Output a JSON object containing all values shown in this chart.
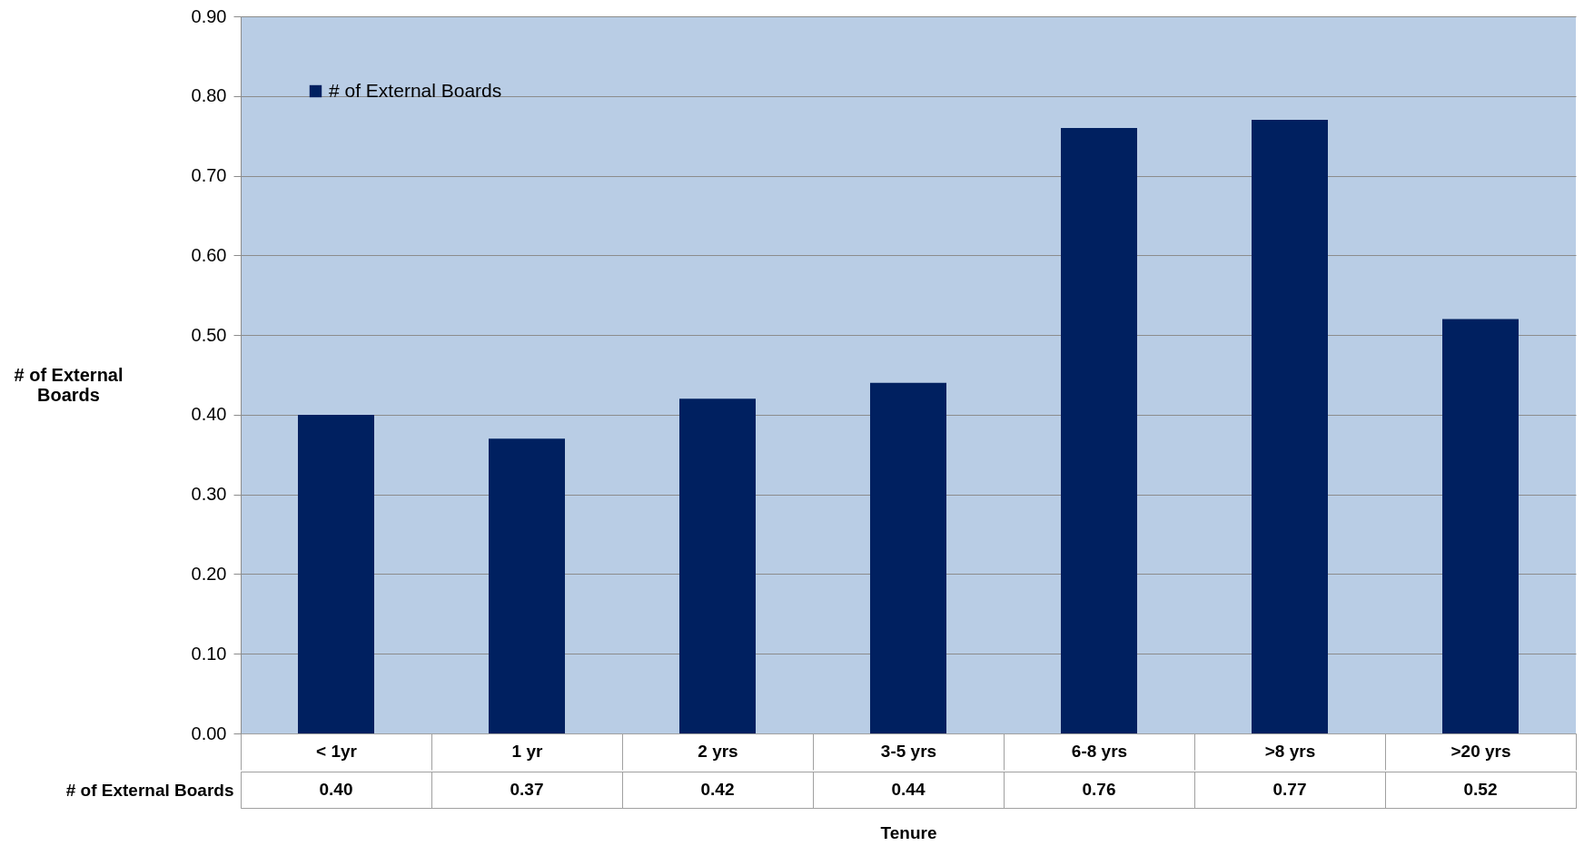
{
  "chart_data": {
    "type": "bar",
    "xlabel": "Tenure",
    "ylabel": "# of  External Boards",
    "categories": [
      "< 1yr",
      "1 yr",
      "2 yrs",
      "3-5 yrs",
      "6-8 yrs",
      ">8 yrs",
      ">20 yrs"
    ],
    "series": [
      {
        "name": "# of External Boards",
        "color": "#002060",
        "values": [
          0.4,
          0.37,
          0.42,
          0.44,
          0.76,
          0.77,
          0.52
        ],
        "value_labels": [
          "0.40",
          "0.37",
          "0.42",
          "0.44",
          "0.76",
          "0.77",
          "0.52"
        ]
      }
    ],
    "ylim": [
      0,
      0.9
    ],
    "yticks": [
      {
        "value": 0,
        "label": "0.00"
      },
      {
        "value": 0.1,
        "label": "0.10"
      },
      {
        "value": 0.2,
        "label": "0.20"
      },
      {
        "value": 0.3,
        "label": "0.30"
      },
      {
        "value": 0.4,
        "label": "0.40"
      },
      {
        "value": 0.5,
        "label": "0.50"
      },
      {
        "value": 0.6,
        "label": "0.60"
      },
      {
        "value": 0.7,
        "label": "0.70"
      },
      {
        "value": 0.8,
        "label": "0.80"
      },
      {
        "value": 0.9,
        "label": "0.90"
      }
    ],
    "grid": "y",
    "legend": "top left"
  }
}
